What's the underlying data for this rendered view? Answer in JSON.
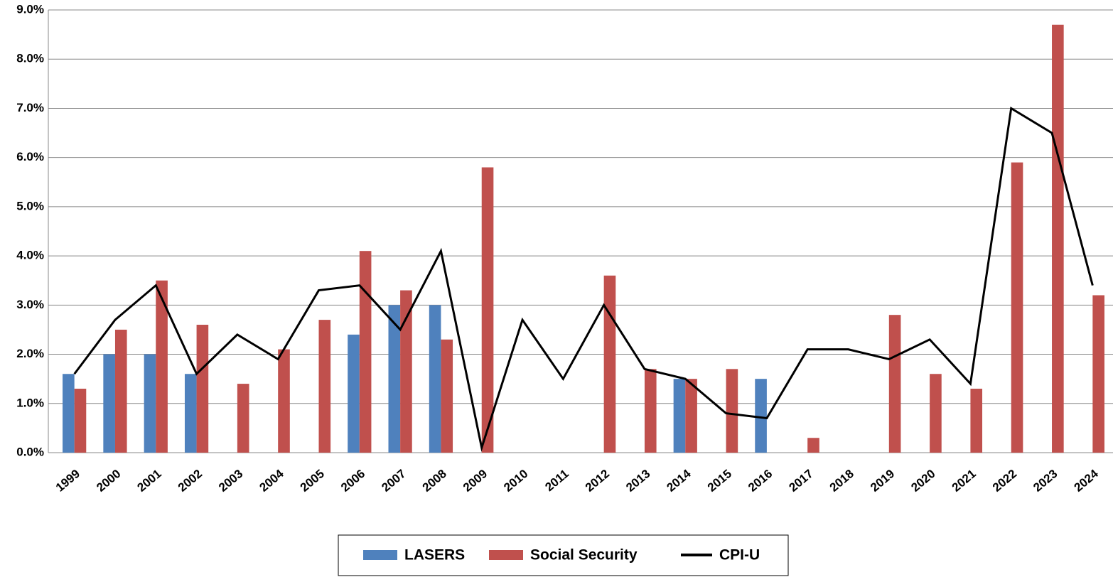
{
  "chart_data": {
    "type": "bar",
    "categories": [
      "1999",
      "2000",
      "2001",
      "2002",
      "2003",
      "2004",
      "2005",
      "2006",
      "2007",
      "2008",
      "2009",
      "2010",
      "2011",
      "2012",
      "2013",
      "2014",
      "2015",
      "2016",
      "2017",
      "2018",
      "2019",
      "2020",
      "2021",
      "2022",
      "2023",
      "2024"
    ],
    "series": [
      {
        "name": "LASERS",
        "color": "#4f81bd",
        "type": "bar",
        "values": [
          1.6,
          2.0,
          2.0,
          1.6,
          null,
          null,
          null,
          2.4,
          3.0,
          3.0,
          null,
          null,
          null,
          null,
          null,
          1.5,
          null,
          1.5,
          null,
          null,
          null,
          null,
          null,
          null,
          null,
          null
        ]
      },
      {
        "name": "Social Security",
        "color": "#c0504d",
        "type": "bar",
        "values": [
          1.3,
          2.5,
          3.5,
          2.6,
          1.4,
          2.1,
          2.7,
          4.1,
          3.3,
          2.3,
          5.8,
          0,
          0,
          3.6,
          1.7,
          1.5,
          1.7,
          0,
          0.3,
          0,
          2.8,
          1.6,
          1.3,
          5.9,
          8.7,
          3.2
        ]
      },
      {
        "name": "CPI-U",
        "color": "#000000",
        "type": "line",
        "values": [
          1.6,
          2.7,
          3.4,
          1.6,
          2.4,
          1.9,
          3.3,
          3.4,
          2.5,
          4.1,
          0.1,
          2.7,
          1.5,
          3.0,
          1.7,
          1.5,
          0.8,
          0.7,
          2.1,
          2.1,
          1.9,
          2.3,
          1.4,
          7.0,
          6.5,
          3.4
        ]
      }
    ],
    "ylim": [
      0,
      9
    ],
    "yticks": [
      {
        "value": 0,
        "label": "0.0%"
      },
      {
        "value": 1,
        "label": "1.0%"
      },
      {
        "value": 2,
        "label": "2.0%"
      },
      {
        "value": 3,
        "label": "3.0%"
      },
      {
        "value": 4,
        "label": "4.0%"
      },
      {
        "value": 5,
        "label": "5.0%"
      },
      {
        "value": 6,
        "label": "6.0%"
      },
      {
        "value": 7,
        "label": "7.0%"
      },
      {
        "value": 8,
        "label": "8.0%"
      },
      {
        "value": 9,
        "label": "9.0%"
      }
    ],
    "grid": true,
    "legend": "bottom"
  }
}
